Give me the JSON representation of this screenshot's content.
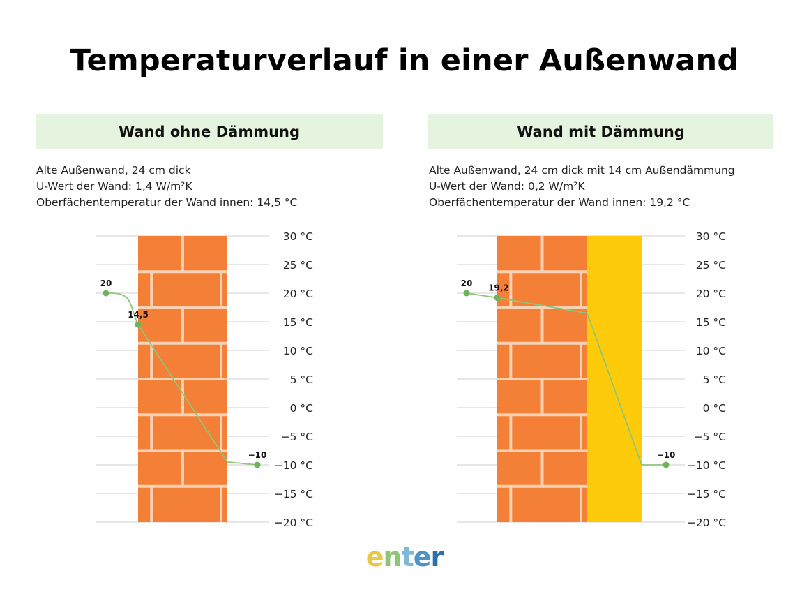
{
  "title": "Temperaturverlauf in einer Außenwand",
  "colors": {
    "brick": "#f47f36",
    "mortar": "#fbd1b4",
    "insulation": "#fdcb0a",
    "curve": "#8cc777",
    "point": "#6db35b",
    "grid": "#cfcfcf",
    "header_bg": "#e5f4df"
  },
  "panels": [
    {
      "header": "Wand ohne Dämmung",
      "info": [
        "Alte Außenwand, 24 cm dick",
        "U-Wert der Wand: 1,4 W/m²K",
        "Oberfächentemperatur der Wand innen: 14,5 °C"
      ],
      "insulation": false
    },
    {
      "header": "Wand mit Dämmung",
      "info": [
        "Alte Außenwand, 24 cm dick mit 14 cm Außendämmung",
        "U-Wert der Wand: 0,2 W/m²K",
        "Oberfächentemperatur der Wand innen: 19,2 °C"
      ],
      "insulation": true
    }
  ],
  "chart_data": [
    {
      "type": "line",
      "ylim": [
        -20,
        30
      ],
      "ytick_labels": [
        "30 °C",
        "25 °C",
        "20 °C",
        "15 °C",
        "10 °C",
        "5 °C",
        "0 °C",
        "−5 °C",
        "−10 °C",
        "−15 °C",
        "−20 °C"
      ],
      "ytick_values": [
        30,
        25,
        20,
        15,
        10,
        5,
        0,
        -5,
        -10,
        -15,
        -20
      ],
      "series": [
        {
          "points": [
            {
              "position": "room",
              "temperature": 20,
              "label": "20"
            },
            {
              "position": "wall-inside",
              "temperature": 14.5,
              "label": "14,5"
            },
            {
              "position": "wall-outside",
              "temperature": -9.5,
              "label": ""
            },
            {
              "position": "outside",
              "temperature": -10,
              "label": "−10"
            }
          ]
        }
      ]
    },
    {
      "type": "line",
      "ylim": [
        -20,
        30
      ],
      "ytick_labels": [
        "30 °C",
        "25 °C",
        "20 °C",
        "15 °C",
        "10 °C",
        "5 °C",
        "0 °C",
        "−5 °C",
        "−10 °C",
        "−15 °C",
        "−20 °C"
      ],
      "ytick_values": [
        30,
        25,
        20,
        15,
        10,
        5,
        0,
        -5,
        -10,
        -15,
        -20
      ],
      "series": [
        {
          "points": [
            {
              "position": "room",
              "temperature": 20,
              "label": "20"
            },
            {
              "position": "wall-inside",
              "temperature": 19.2,
              "label": "19,2"
            },
            {
              "position": "insulation-inside",
              "temperature": 16.5,
              "label": ""
            },
            {
              "position": "insulation-outside",
              "temperature": -10,
              "label": ""
            },
            {
              "position": "outside",
              "temperature": -10,
              "label": "−10"
            }
          ]
        }
      ]
    }
  ],
  "logo": {
    "letters": [
      "e",
      "n",
      "t",
      "e",
      "r"
    ],
    "colors": [
      "#e8c84a",
      "#8cc777",
      "#7fb8d9",
      "#4d93c6",
      "#2f6fa8"
    ]
  }
}
